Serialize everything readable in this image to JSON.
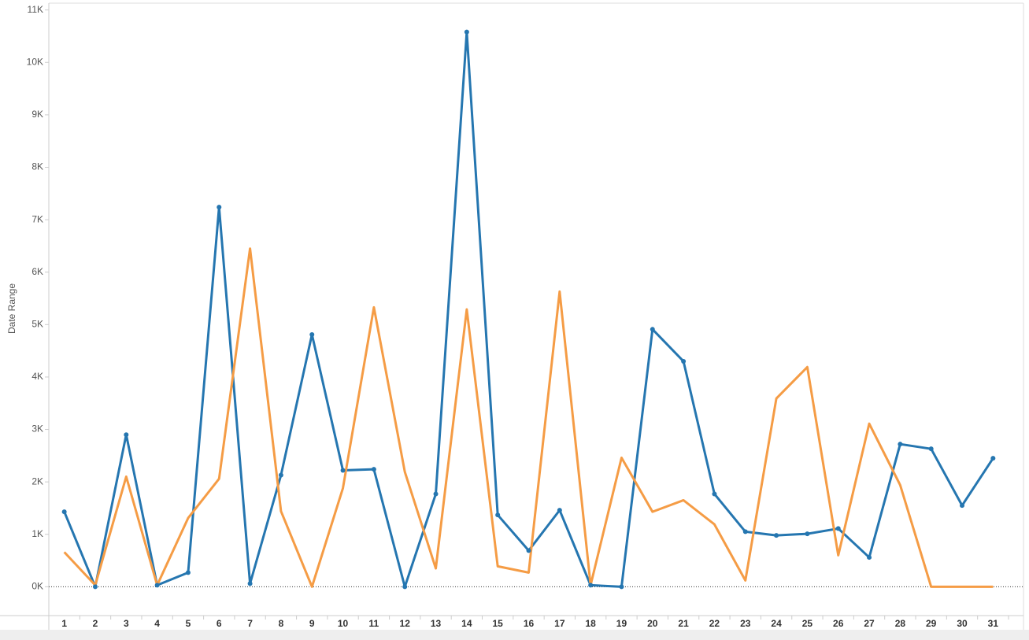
{
  "chart_data": {
    "type": "line",
    "y_axis_label": "Date Range",
    "categories": [
      "1",
      "2",
      "3",
      "4",
      "5",
      "6",
      "7",
      "8",
      "9",
      "10",
      "11",
      "12",
      "13",
      "14",
      "15",
      "16",
      "17",
      "18",
      "19",
      "20",
      "21",
      "22",
      "23",
      "24",
      "25",
      "26",
      "27",
      "28",
      "29",
      "30",
      "31"
    ],
    "series": [
      {
        "color": "#2576b0",
        "markers": true,
        "values": [
          1430,
          0,
          2900,
          30,
          270,
          7240,
          60,
          2130,
          4810,
          2220,
          2240,
          0,
          1770,
          10580,
          1370,
          690,
          1460,
          30,
          0,
          4910,
          4300,
          1770,
          1050,
          980,
          1010,
          1110,
          560,
          2720,
          2630,
          1550,
          2450
        ]
      },
      {
        "color": "#f59c45",
        "markers": false,
        "values": [
          660,
          30,
          2100,
          30,
          1310,
          2060,
          6450,
          1440,
          0,
          1880,
          5330,
          2190,
          350,
          5290,
          390,
          270,
          5630,
          30,
          2460,
          1430,
          1650,
          1190,
          120,
          3590,
          4190,
          600,
          3110,
          1940,
          0,
          0,
          0
        ]
      }
    ],
    "ylim": [
      -550,
      11100
    ],
    "yticks": [
      {
        "value": 0,
        "label": "0K"
      },
      {
        "value": 1000,
        "label": "1K"
      },
      {
        "value": 2000,
        "label": "2K"
      },
      {
        "value": 3000,
        "label": "3K"
      },
      {
        "value": 4000,
        "label": "4K"
      },
      {
        "value": 5000,
        "label": "5K"
      },
      {
        "value": 6000,
        "label": "6K"
      },
      {
        "value": 7000,
        "label": "7K"
      },
      {
        "value": 8000,
        "label": "8K"
      },
      {
        "value": 9000,
        "label": "9K"
      },
      {
        "value": 10000,
        "label": "10K"
      },
      {
        "value": 11000,
        "label": "11K"
      }
    ],
    "zero_line": true
  }
}
